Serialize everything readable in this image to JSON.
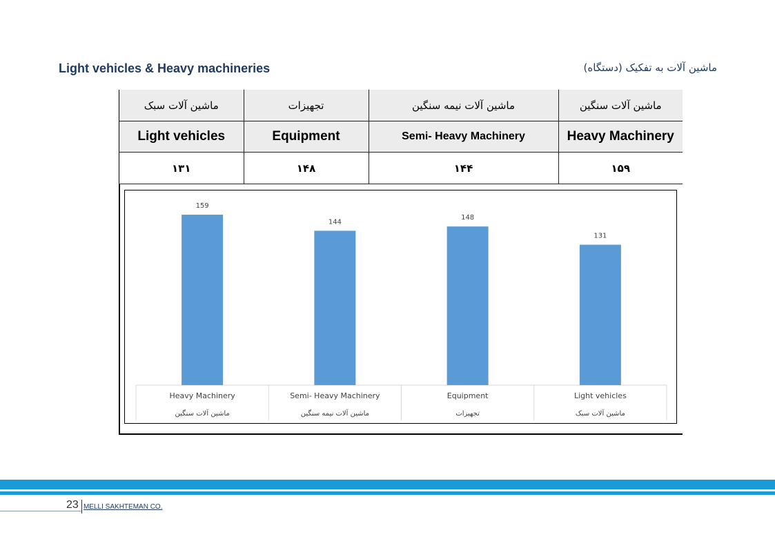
{
  "header": {
    "title_en": "Light vehicles & Heavy machineries",
    "title_fa": "ماشین آلات به تفکیک (دستگاه)"
  },
  "table": {
    "columns": [
      {
        "fa": "ماشین آلات سبک",
        "en": "Light vehicles",
        "value": "۱۳۱"
      },
      {
        "fa": "تجهیزات",
        "en": "Equipment",
        "value": "۱۴۸"
      },
      {
        "fa": "ماشین آلات نیمه سنگین",
        "en": "Semi- Heavy Machinery",
        "value": "۱۴۴"
      },
      {
        "fa": "ماشین آلات سنگین",
        "en": "Heavy Machinery",
        "value": "۱۵۹"
      }
    ]
  },
  "chart_data": {
    "type": "bar",
    "categories": [
      "Heavy Machinery",
      "Semi- Heavy Machinery",
      "Equipment",
      "Light vehicles"
    ],
    "categories_fa": [
      "ماشین آلات سنگین",
      "ماشین آلات نیمه سنگین",
      "تجهیزات",
      "ماشین آلات سبک"
    ],
    "values": [
      159,
      144,
      148,
      131
    ],
    "ylim": [
      0,
      170
    ],
    "grid": false,
    "legend": "none",
    "bar_color": "#5b9bd5"
  },
  "footer": {
    "page_number": "23",
    "company": "MELLI SAKHTEMAN CO."
  },
  "colors": {
    "accent": "#1a9ad6",
    "title": "#1f3b63"
  }
}
